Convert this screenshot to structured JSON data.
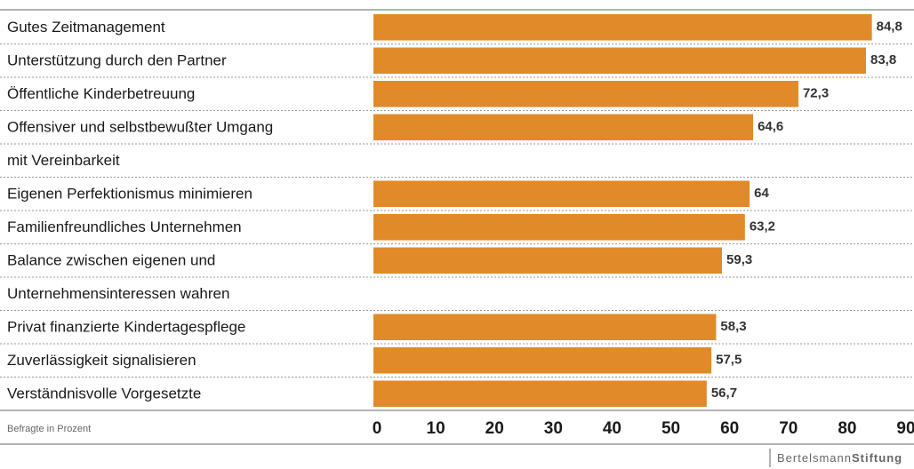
{
  "chart_data": {
    "type": "bar",
    "orientation": "horizontal",
    "categories": [
      [
        "Gutes Zeitmanagement"
      ],
      [
        "Unterstützung durch den Partner"
      ],
      [
        "Öffentliche Kinderbetreuung"
      ],
      [
        "Offensiver und selbstbewußter Umgang",
        "mit Vereinbarkeit"
      ],
      [
        "Eigenen Perfektionismus minimieren"
      ],
      [
        "Familienfreundliches Unternehmen"
      ],
      [
        "Balance zwischen eigenen und",
        "Unternehmensinteressen wahren"
      ],
      [
        "Privat finanzierte Kindertagespflege"
      ],
      [
        "Zuverlässigkeit signalisieren"
      ],
      [
        "Verständnisvolle Vorgesetzte"
      ]
    ],
    "values": [
      84.8,
      83.8,
      72.3,
      64.6,
      64,
      63.2,
      59.3,
      58.3,
      57.5,
      56.7
    ],
    "value_labels": [
      "84,8",
      "83,8",
      "72,3",
      "64,6",
      "64",
      "63,2",
      "59,3",
      "58,3",
      "57,5",
      "56,7"
    ],
    "color": "#e08a2a",
    "xlim": [
      0,
      90
    ],
    "xticks": [
      0,
      10,
      20,
      30,
      40,
      50,
      60,
      70,
      80,
      90
    ],
    "axis_label": "Befragte in Prozent",
    "source": [
      "Bertelsmann",
      "Stiftung"
    ]
  }
}
